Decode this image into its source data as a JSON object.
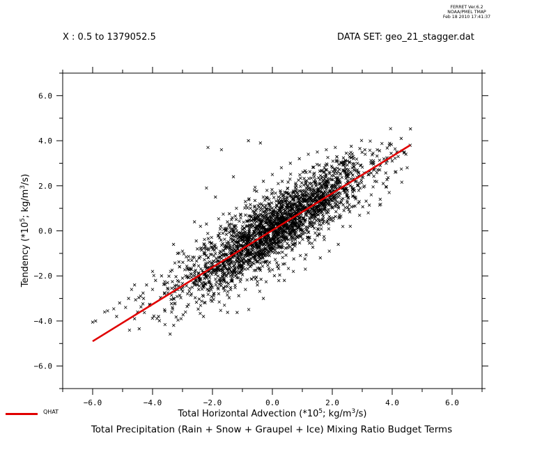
{
  "stamp": {
    "line1": "FERRET  Ver.6.2",
    "line2": "NOAA/PMEL TMAP",
    "line3": "Feb 18 2010 17:41:37"
  },
  "header": {
    "x_range": "X : 0.5 to 1379052.5",
    "dataset": "DATA SET: geo_21_stagger.dat"
  },
  "footer_title": "Total Precipitation (Rain + Snow + Graupel + Ice) Mixing Ratio Budget Terms",
  "legend": {
    "label": "QHAT",
    "color": "#e00000"
  },
  "chart_data": {
    "type": "scatter",
    "xlabel": "Total Horizontal Advection (*10^5; kg/m^3/s)",
    "ylabel": "Tendency (*10^5; kg/m^3/s)",
    "xlim": [
      -7.0,
      7.0
    ],
    "ylim": [
      -7.0,
      7.0
    ],
    "x_ticks": [
      "−6.0",
      "−4.0",
      "−2.0",
      "0.0",
      "2.0",
      "4.0",
      "6.0"
    ],
    "x_tick_values": [
      -6,
      -4,
      -2,
      0,
      2,
      4,
      6
    ],
    "y_ticks": [
      "6.0",
      "4.0",
      "2.0",
      "0.0",
      "−2.0",
      "−4.0",
      "−6.0"
    ],
    "y_tick_values": [
      6,
      4,
      2,
      0,
      -2,
      -4,
      -6
    ],
    "grid": false,
    "marker": "x",
    "marker_color": "#000000",
    "series": [
      {
        "name": "QHAT",
        "type": "line",
        "color": "#e00000",
        "x": [
          -6.0,
          4.6
        ],
        "y": [
          -4.9,
          3.8
        ]
      }
    ],
    "scatter_points": [
      [
        -6.0,
        -4.05
      ],
      [
        -5.9,
        -4.0
      ],
      [
        -5.6,
        -3.6
      ],
      [
        -5.5,
        -3.55
      ],
      [
        -5.2,
        -3.8
      ],
      [
        -5.1,
        -3.2
      ],
      [
        -4.9,
        -3.4
      ],
      [
        -4.8,
        -3.0
      ],
      [
        -4.7,
        -2.6
      ],
      [
        -4.6,
        -3.9
      ],
      [
        -4.5,
        -3.6
      ],
      [
        -4.4,
        -2.9
      ],
      [
        -4.3,
        -3.0
      ],
      [
        -4.2,
        -2.4
      ],
      [
        -4.1,
        -3.3
      ],
      [
        -4.0,
        -2.6
      ],
      [
        -3.9,
        -2.2
      ],
      [
        -3.8,
        -3.8
      ],
      [
        -3.7,
        -2.0
      ],
      [
        -3.6,
        -3.5
      ],
      [
        -3.5,
        -2.3
      ],
      [
        -3.4,
        -1.8
      ],
      [
        -3.3,
        -3.0
      ],
      [
        -3.2,
        -2.6
      ],
      [
        -3.1,
        -1.6
      ],
      [
        -3.0,
        -2.1
      ],
      [
        -2.9,
        -3.6
      ],
      [
        -2.8,
        -1.3
      ],
      [
        -2.7,
        -2.8
      ],
      [
        -2.6,
        -1.5
      ],
      [
        -2.5,
        -2.4
      ],
      [
        -2.4,
        -0.8
      ],
      [
        -2.3,
        -2.9
      ],
      [
        -2.2,
        -1.1
      ],
      [
        -2.1,
        -0.5
      ],
      [
        -2.0,
        -2.5
      ],
      [
        -1.9,
        -1.0
      ],
      [
        -1.8,
        -0.2
      ],
      [
        -1.7,
        -2.2
      ],
      [
        -1.6,
        -0.7
      ],
      [
        -1.5,
        0.4
      ],
      [
        -1.4,
        -2.0
      ],
      [
        -1.3,
        -0.4
      ],
      [
        -1.2,
        1.0
      ],
      [
        -1.1,
        -1.6
      ],
      [
        -1.0,
        0.2
      ],
      [
        -0.9,
        1.3
      ],
      [
        -0.8,
        -1.4
      ],
      [
        -0.7,
        0.6
      ],
      [
        -0.6,
        1.8
      ],
      [
        -0.5,
        -1.1
      ],
      [
        -0.4,
        0.9
      ],
      [
        -0.3,
        2.2
      ],
      [
        -0.2,
        -0.8
      ],
      [
        -0.1,
        1.2
      ],
      [
        0.0,
        2.5
      ],
      [
        0.1,
        -0.6
      ],
      [
        0.2,
        1.5
      ],
      [
        0.3,
        2.8
      ],
      [
        0.4,
        -0.3
      ],
      [
        0.5,
        1.7
      ],
      [
        0.6,
        3.0
      ],
      [
        0.7,
        0.0
      ],
      [
        0.8,
        2.0
      ],
      [
        0.9,
        3.2
      ],
      [
        1.0,
        0.3
      ],
      [
        1.1,
        2.2
      ],
      [
        1.2,
        3.4
      ],
      [
        1.3,
        0.6
      ],
      [
        1.4,
        2.4
      ],
      [
        1.5,
        3.5
      ],
      [
        1.6,
        0.9
      ],
      [
        1.7,
        2.6
      ],
      [
        1.8,
        3.6
      ],
      [
        1.9,
        1.2
      ],
      [
        2.0,
        2.8
      ],
      [
        2.1,
        3.7
      ],
      [
        2.2,
        1.5
      ],
      [
        2.3,
        3.0
      ],
      [
        2.4,
        1.8
      ],
      [
        2.5,
        3.1
      ],
      [
        2.6,
        2.0
      ],
      [
        2.7,
        3.3
      ],
      [
        2.8,
        2.2
      ],
      [
        2.9,
        1.3
      ],
      [
        3.0,
        2.4
      ],
      [
        3.1,
        3.4
      ],
      [
        3.2,
        2.5
      ],
      [
        3.3,
        1.6
      ],
      [
        3.4,
        2.7
      ],
      [
        3.5,
        3.6
      ],
      [
        3.6,
        2.9
      ],
      [
        3.7,
        2.1
      ],
      [
        3.8,
        3.0
      ],
      [
        3.9,
        3.8
      ],
      [
        4.0,
        3.1
      ],
      [
        4.1,
        2.6
      ],
      [
        4.2,
        3.3
      ],
      [
        4.3,
        4.1
      ],
      [
        4.4,
        3.5
      ],
      [
        4.5,
        2.8
      ],
      [
        4.6,
        3.8
      ],
      [
        -2.15,
        3.7
      ],
      [
        -1.7,
        3.6
      ],
      [
        -0.8,
        4.0
      ],
      [
        -0.4,
        3.9
      ],
      [
        -2.2,
        1.9
      ],
      [
        -2.4,
        0.2
      ],
      [
        -1.9,
        1.5
      ],
      [
        -1.3,
        2.4
      ],
      [
        -0.9,
        -2.6
      ],
      [
        -0.3,
        -3.0
      ],
      [
        0.4,
        -2.2
      ],
      [
        1.1,
        -1.7
      ],
      [
        1.6,
        -1.2
      ],
      [
        2.2,
        -0.6
      ],
      [
        2.6,
        0.2
      ],
      [
        3.2,
        0.8
      ],
      [
        3.6,
        1.4
      ],
      [
        3.9,
        1.7
      ],
      [
        -3.3,
        -0.6
      ],
      [
        -3.0,
        -0.9
      ],
      [
        -2.6,
        0.4
      ],
      [
        -4.0,
        -1.8
      ],
      [
        -4.6,
        -2.4
      ],
      [
        1.9,
        -0.9
      ],
      [
        0.7,
        -1.8
      ],
      [
        -0.5,
        -2.4
      ],
      [
        -1.6,
        -3.3
      ],
      [
        -2.3,
        -3.8
      ]
    ]
  }
}
